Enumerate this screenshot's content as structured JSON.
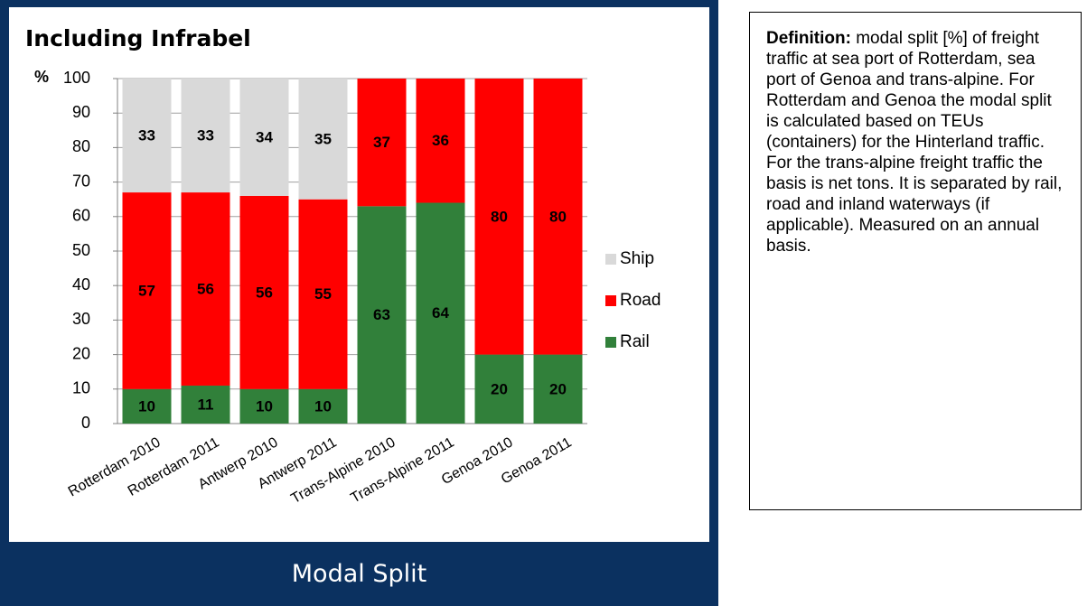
{
  "chart_data": {
    "type": "stacked-bar",
    "title": "Including Infrabel",
    "y_label": "%",
    "footer": "Modal Split",
    "categories": [
      "Rotterdam 2010",
      "Rotterdam 2011",
      "Antwerp 2010",
      "Antwerp 2011",
      "Trans-Alpine 2010",
      "Trans-Alpine 2011",
      "Genoa 2010",
      "Genoa 2011"
    ],
    "series": [
      {
        "name": "Ship",
        "color": "#d9d9d9",
        "label_color": "#000000",
        "values": [
          33,
          33,
          34,
          35,
          null,
          null,
          null,
          null
        ]
      },
      {
        "name": "Road",
        "color": "#ff0000",
        "label_color": "#ffffff",
        "values": [
          57,
          56,
          56,
          55,
          37,
          36,
          80,
          80
        ]
      },
      {
        "name": "Rail",
        "color": "#31803a",
        "label_color": "#ffffff",
        "values": [
          10,
          11,
          10,
          10,
          63,
          64,
          20,
          20
        ]
      }
    ],
    "ylim": [
      0,
      100
    ],
    "yticks": [
      0,
      10,
      20,
      30,
      40,
      50,
      60,
      70,
      80,
      90,
      100
    ],
    "grid": true,
    "legend": "right"
  },
  "definition": {
    "label": "Definition:",
    "text": "modal split [%] of freight traffic at sea port of Rotterdam, sea port of Genoa and trans-alpine. For Rotterdam and Genoa the modal split is calculated based on TEUs (containers) for the Hinterland traffic. For the trans-alpine freight traffic the basis is net tons. It is separated by rail, road and inland waterways (if applicable). Measured on an annual basis."
  }
}
